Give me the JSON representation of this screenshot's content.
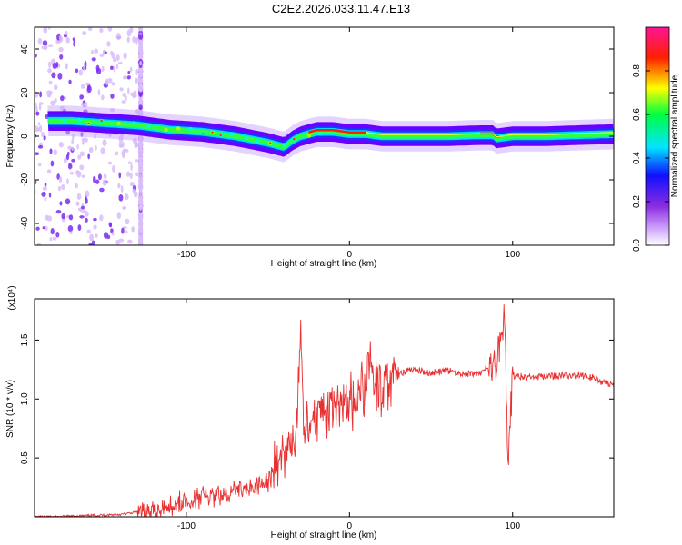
{
  "title": "C2E2.2026.033.11.47.E13",
  "chart_data": [
    {
      "type": "heatmap",
      "title": "C2E2.2026.033.11.47.E13",
      "xlabel": "Height of straight line (km)",
      "ylabel": "Frequency (Hz)",
      "xlim": [
        -193,
        162
      ],
      "ylim": [
        -50,
        50
      ],
      "xticks": [
        -100,
        0,
        100
      ],
      "yticks": [
        -40,
        -20,
        0,
        20,
        40
      ],
      "grid": false,
      "ridge": {
        "x": [
          -170,
          -150,
          -130,
          -110,
          -90,
          -70,
          -50,
          -40,
          -35,
          -30,
          -20,
          -10,
          0,
          10,
          20,
          40,
          60,
          80,
          88,
          90,
          100,
          120,
          140,
          162
        ],
        "y": [
          7,
          6,
          5,
          3,
          2,
          0,
          -3,
          -5,
          -2,
          0,
          2,
          2,
          1,
          1,
          0,
          0,
          0,
          0.5,
          0.5,
          -1,
          0,
          0,
          0.5,
          1
        ]
      },
      "colorbar": {
        "label": "Normalized spectral amplitude",
        "range": [
          0,
          1
        ],
        "ticks": [
          0.0,
          0.2,
          0.4,
          0.6,
          0.8
        ],
        "tick_labels": [
          "0.0",
          "0.2",
          "0.4",
          "0.6",
          "0.8"
        ],
        "colors": [
          "#ffffff",
          "#d9b8ff",
          "#8a2be2",
          "#1010ff",
          "#00e5ff",
          "#00ff40",
          "#ffff00",
          "#ff2000",
          "#ff1493"
        ]
      }
    },
    {
      "type": "line",
      "xlabel": "Height of straight line (km)",
      "ylabel": "SNR (10 * v/v)",
      "scale_label": "(x10⁴)",
      "xlim": [
        -193,
        162
      ],
      "ylim": [
        0,
        1.85
      ],
      "xticks": [
        -100,
        0,
        100
      ],
      "yticks": [
        0.5,
        1.0,
        1.5
      ],
      "ytick_labels": [
        "0.5",
        "1.0",
        "1.5"
      ],
      "color": "#e83030",
      "series": [
        {
          "x": [
            -193,
            -180,
            -160,
            -140,
            -130,
            -120,
            -110,
            -100,
            -90,
            -80,
            -70,
            -60,
            -55,
            -50,
            -45,
            -40,
            -38,
            -35,
            -32,
            -30,
            -28,
            -25,
            -20,
            -15,
            -10,
            -5,
            0,
            5,
            10,
            12,
            15,
            20,
            25,
            30,
            35,
            40,
            50,
            60,
            70,
            80,
            90,
            95,
            97,
            100,
            110,
            120,
            130,
            140,
            150,
            155,
            162
          ],
          "y": [
            0.0,
            0.0,
            0.01,
            0.02,
            0.04,
            0.06,
            0.1,
            0.14,
            0.17,
            0.19,
            0.21,
            0.24,
            0.28,
            0.33,
            0.42,
            0.55,
            0.62,
            0.58,
            0.72,
            1.68,
            0.65,
            0.78,
            0.82,
            0.9,
            0.93,
            1.0,
            0.98,
            1.02,
            1.08,
            1.4,
            1.1,
            1.12,
            1.16,
            1.2,
            1.24,
            1.25,
            1.22,
            1.24,
            1.21,
            1.22,
            1.3,
            1.78,
            0.5,
            1.2,
            1.18,
            1.19,
            1.2,
            1.2,
            1.18,
            1.14,
            1.12
          ]
        }
      ]
    }
  ]
}
